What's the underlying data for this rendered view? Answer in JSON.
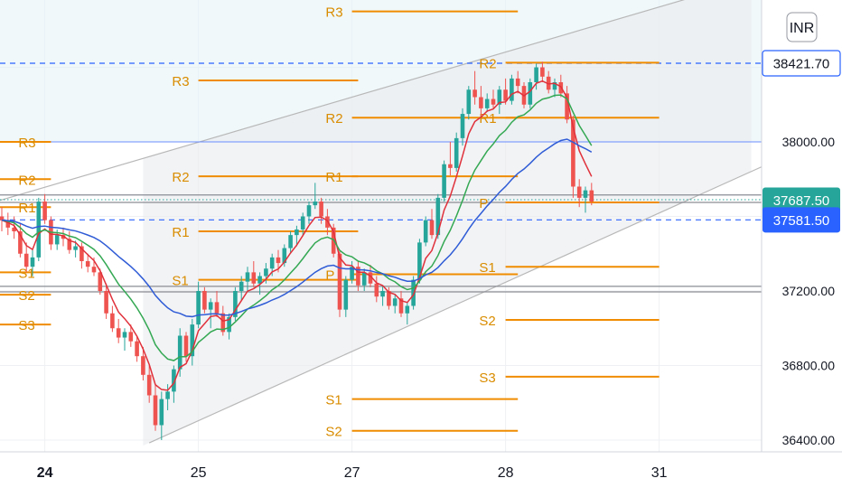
{
  "currency_badge": "INR",
  "chart_data": {
    "type": "candlestick",
    "ylim": [
      36350,
      38800
    ],
    "y_ticks": [
      "36400.00",
      "36800.00",
      "37200.00",
      "38000.00"
    ],
    "x_ticks": [
      {
        "label": "24",
        "bold": true,
        "slot": 7
      },
      {
        "label": "25",
        "bold": false,
        "slot": 32
      },
      {
        "label": "27",
        "bold": false,
        "slot": 57
      },
      {
        "label": "28",
        "bold": false,
        "slot": 82
      },
      {
        "label": "31",
        "bold": false,
        "slot": 107
      }
    ],
    "price_labels": [
      {
        "text": "38421.70",
        "value": 38421.7,
        "style": "outline"
      },
      {
        "text": "37687.50",
        "value": 37687.5,
        "style": "green"
      },
      {
        "text": "37581.50",
        "value": 37581.5,
        "style": "blue"
      }
    ],
    "reference_lines": [
      {
        "value": 38421.7,
        "style": "dash"
      },
      {
        "value": 37581.5,
        "style": "dash"
      },
      {
        "value": 38000,
        "style": "solid"
      },
      {
        "value": 37690,
        "style": "dotted-green"
      },
      {
        "value": 37715,
        "style": "gray"
      },
      {
        "value": 37675,
        "style": "gray"
      },
      {
        "value": 37225,
        "style": "gray"
      },
      {
        "value": 37195,
        "style": "gray"
      }
    ],
    "channel": {
      "upper": [
        [
          -3,
          37660
        ],
        [
          118,
          38830
        ]
      ],
      "lower": [
        [
          24,
          36385
        ],
        [
          130,
          37960
        ]
      ]
    },
    "pivot_levels": [
      {
        "label": "R3",
        "value": 38000,
        "from": -3,
        "to": 8,
        "label_slot": 3
      },
      {
        "label": "R2",
        "value": 37800,
        "from": -3,
        "to": 8,
        "label_slot": 3
      },
      {
        "label": "R1",
        "value": 37650,
        "from": -3,
        "to": 8,
        "label_slot": 3
      },
      {
        "label": "S1",
        "value": 37300,
        "from": -3,
        "to": 8,
        "label_slot": 3
      },
      {
        "label": "S2",
        "value": 37180,
        "from": -3,
        "to": 8,
        "label_slot": 3
      },
      {
        "label": "S3",
        "value": 37020,
        "from": -3,
        "to": 8,
        "label_slot": 3
      },
      {
        "label": "R3",
        "value": 38330,
        "from": 32,
        "to": 58,
        "label_slot": 28
      },
      {
        "label": "R2",
        "value": 37815,
        "from": 32,
        "to": 58,
        "label_slot": 28
      },
      {
        "label": "R1",
        "value": 37520,
        "from": 32,
        "to": 58,
        "label_slot": 28
      },
      {
        "label": "S1",
        "value": 37260,
        "from": 32,
        "to": 58,
        "label_slot": 28
      },
      {
        "label": "R3",
        "value": 38700,
        "from": 57,
        "to": 84,
        "label_slot": 53
      },
      {
        "label": "R2",
        "value": 38130,
        "from": 57,
        "to": 84,
        "label_slot": 53
      },
      {
        "label": "R1",
        "value": 37815,
        "from": 57,
        "to": 84,
        "label_slot": 53
      },
      {
        "label": "S1",
        "value": 36620,
        "from": 57,
        "to": 84,
        "label_slot": 53
      },
      {
        "label": "S2",
        "value": 36450,
        "from": 57,
        "to": 84,
        "label_slot": 53
      },
      {
        "label": "P",
        "value": 37290,
        "from": 57,
        "to": 84,
        "label_slot": 53
      },
      {
        "label": "R2",
        "value": 38425,
        "from": 82,
        "to": 107,
        "label_slot": 78
      },
      {
        "label": "R1",
        "value": 38130,
        "from": 82,
        "to": 107,
        "label_slot": 78
      },
      {
        "label": "P",
        "value": 37675,
        "from": 82,
        "to": 107,
        "label_slot": 78
      },
      {
        "label": "S1",
        "value": 37330,
        "from": 82,
        "to": 107,
        "label_slot": 78
      },
      {
        "label": "S2",
        "value": 37045,
        "from": 82,
        "to": 107,
        "label_slot": 78
      },
      {
        "label": "S3",
        "value": 36740,
        "from": 82,
        "to": 107,
        "label_slot": 78
      }
    ],
    "candles": [
      [
        37600,
        37650,
        37520,
        37580
      ],
      [
        37580,
        37620,
        37500,
        37540
      ],
      [
        37540,
        37600,
        37480,
        37520
      ],
      [
        37520,
        37560,
        37380,
        37400
      ],
      [
        37400,
        37460,
        37300,
        37330
      ],
      [
        37330,
        37420,
        37280,
        37380
      ],
      [
        37380,
        37700,
        37360,
        37680
      ],
      [
        37680,
        37720,
        37560,
        37580
      ],
      [
        37580,
        37600,
        37420,
        37450
      ],
      [
        37450,
        37530,
        37420,
        37500
      ],
      [
        37500,
        37540,
        37440,
        37480
      ],
      [
        37480,
        37520,
        37400,
        37420
      ],
      [
        37420,
        37470,
        37380,
        37440
      ],
      [
        37440,
        37460,
        37320,
        37360
      ],
      [
        37360,
        37400,
        37300,
        37330
      ],
      [
        37330,
        37380,
        37280,
        37300
      ],
      [
        37300,
        37320,
        37180,
        37200
      ],
      [
        37200,
        37240,
        37050,
        37080
      ],
      [
        37080,
        37120,
        36980,
        37000
      ],
      [
        37000,
        37050,
        36920,
        36950
      ],
      [
        36950,
        37000,
        36880,
        36980
      ],
      [
        36980,
        37020,
        36900,
        36930
      ],
      [
        36930,
        36960,
        36820,
        36850
      ],
      [
        36850,
        36900,
        36720,
        36750
      ],
      [
        36750,
        36800,
        36600,
        36640
      ],
      [
        36640,
        36700,
        36450,
        36480
      ],
      [
        36480,
        36660,
        36400,
        36620
      ],
      [
        36620,
        36700,
        36560,
        36660
      ],
      [
        36660,
        36800,
        36600,
        36780
      ],
      [
        36780,
        37000,
        36740,
        36960
      ],
      [
        36960,
        36980,
        36820,
        36850
      ],
      [
        36850,
        37050,
        36800,
        37020
      ],
      [
        37020,
        37250,
        37000,
        37200
      ],
      [
        37200,
        37220,
        37080,
        37100
      ],
      [
        37100,
        37160,
        37000,
        37140
      ],
      [
        37140,
        37200,
        37060,
        37080
      ],
      [
        37080,
        37120,
        36960,
        36980
      ],
      [
        36980,
        37080,
        36940,
        37060
      ],
      [
        37060,
        37220,
        37040,
        37200
      ],
      [
        37200,
        37280,
        37150,
        37250
      ],
      [
        37250,
        37330,
        37200,
        37300
      ],
      [
        37300,
        37360,
        37220,
        37240
      ],
      [
        37240,
        37300,
        37180,
        37280
      ],
      [
        37280,
        37350,
        37240,
        37320
      ],
      [
        37320,
        37400,
        37280,
        37380
      ],
      [
        37380,
        37420,
        37300,
        37350
      ],
      [
        37350,
        37450,
        37330,
        37430
      ],
      [
        37430,
        37520,
        37400,
        37500
      ],
      [
        37500,
        37550,
        37440,
        37530
      ],
      [
        37530,
        37620,
        37500,
        37600
      ],
      [
        37600,
        37680,
        37560,
        37660
      ],
      [
        37660,
        37780,
        37640,
        37680
      ],
      [
        37680,
        37700,
        37560,
        37600
      ],
      [
        37600,
        37640,
        37500,
        37540
      ],
      [
        37540,
        37560,
        37380,
        37400
      ],
      [
        37400,
        37420,
        37060,
        37100
      ],
      [
        37100,
        37280,
        37060,
        37260
      ],
      [
        37260,
        37360,
        37240,
        37330
      ],
      [
        37330,
        37360,
        37200,
        37230
      ],
      [
        37230,
        37320,
        37200,
        37300
      ],
      [
        37300,
        37340,
        37220,
        37240
      ],
      [
        37240,
        37280,
        37140,
        37170
      ],
      [
        37170,
        37230,
        37120,
        37200
      ],
      [
        37200,
        37220,
        37100,
        37120
      ],
      [
        37120,
        37180,
        37080,
        37160
      ],
      [
        37160,
        37200,
        37060,
        37080
      ],
      [
        37080,
        37140,
        37020,
        37120
      ],
      [
        37120,
        37280,
        37100,
        37260
      ],
      [
        37260,
        37480,
        37240,
        37460
      ],
      [
        37460,
        37600,
        37440,
        37580
      ],
      [
        37580,
        37640,
        37480,
        37500
      ],
      [
        37500,
        37720,
        37480,
        37700
      ],
      [
        37700,
        37900,
        37680,
        37880
      ],
      [
        37880,
        38000,
        37820,
        37860
      ],
      [
        37860,
        38050,
        37840,
        38020
      ],
      [
        38020,
        38180,
        37980,
        38150
      ],
      [
        38150,
        38300,
        38120,
        38280
      ],
      [
        38280,
        38380,
        38200,
        38240
      ],
      [
        38240,
        38300,
        38140,
        38180
      ],
      [
        38180,
        38260,
        38160,
        38230
      ],
      [
        38230,
        38280,
        38180,
        38200
      ],
      [
        38200,
        38300,
        38150,
        38280
      ],
      [
        38280,
        38340,
        38200,
        38220
      ],
      [
        38220,
        38360,
        38200,
        38340
      ],
      [
        38340,
        38380,
        38260,
        38300
      ],
      [
        38300,
        38320,
        38180,
        38200
      ],
      [
        38200,
        38340,
        38180,
        38320
      ],
      [
        38320,
        38420,
        38280,
        38400
      ],
      [
        38400,
        38430,
        38320,
        38350
      ],
      [
        38350,
        38380,
        38260,
        38280
      ],
      [
        38280,
        38340,
        38240,
        38320
      ],
      [
        38320,
        38360,
        38240,
        38260
      ],
      [
        38260,
        38300,
        38100,
        38120
      ],
      [
        38120,
        38140,
        37700,
        37760
      ],
      [
        37760,
        37800,
        37650,
        37700
      ],
      [
        37700,
        37760,
        37620,
        37740
      ],
      [
        37740,
        37780,
        37660,
        37680
      ]
    ],
    "series": [
      {
        "type": "ema",
        "period": 5,
        "color": "#e0313b"
      },
      {
        "type": "ema",
        "period": 12,
        "color": "#34a853"
      },
      {
        "type": "ema",
        "period": 30,
        "color": "#2f5cd6"
      }
    ],
    "colors": {
      "up": "#26a69a",
      "down": "#ef5350",
      "pivot": "#f08c00",
      "channel": "#b8b8b8",
      "dash": "#2962ff",
      "price_green": "#26a69a",
      "price_blue": "#2962ff"
    }
  }
}
